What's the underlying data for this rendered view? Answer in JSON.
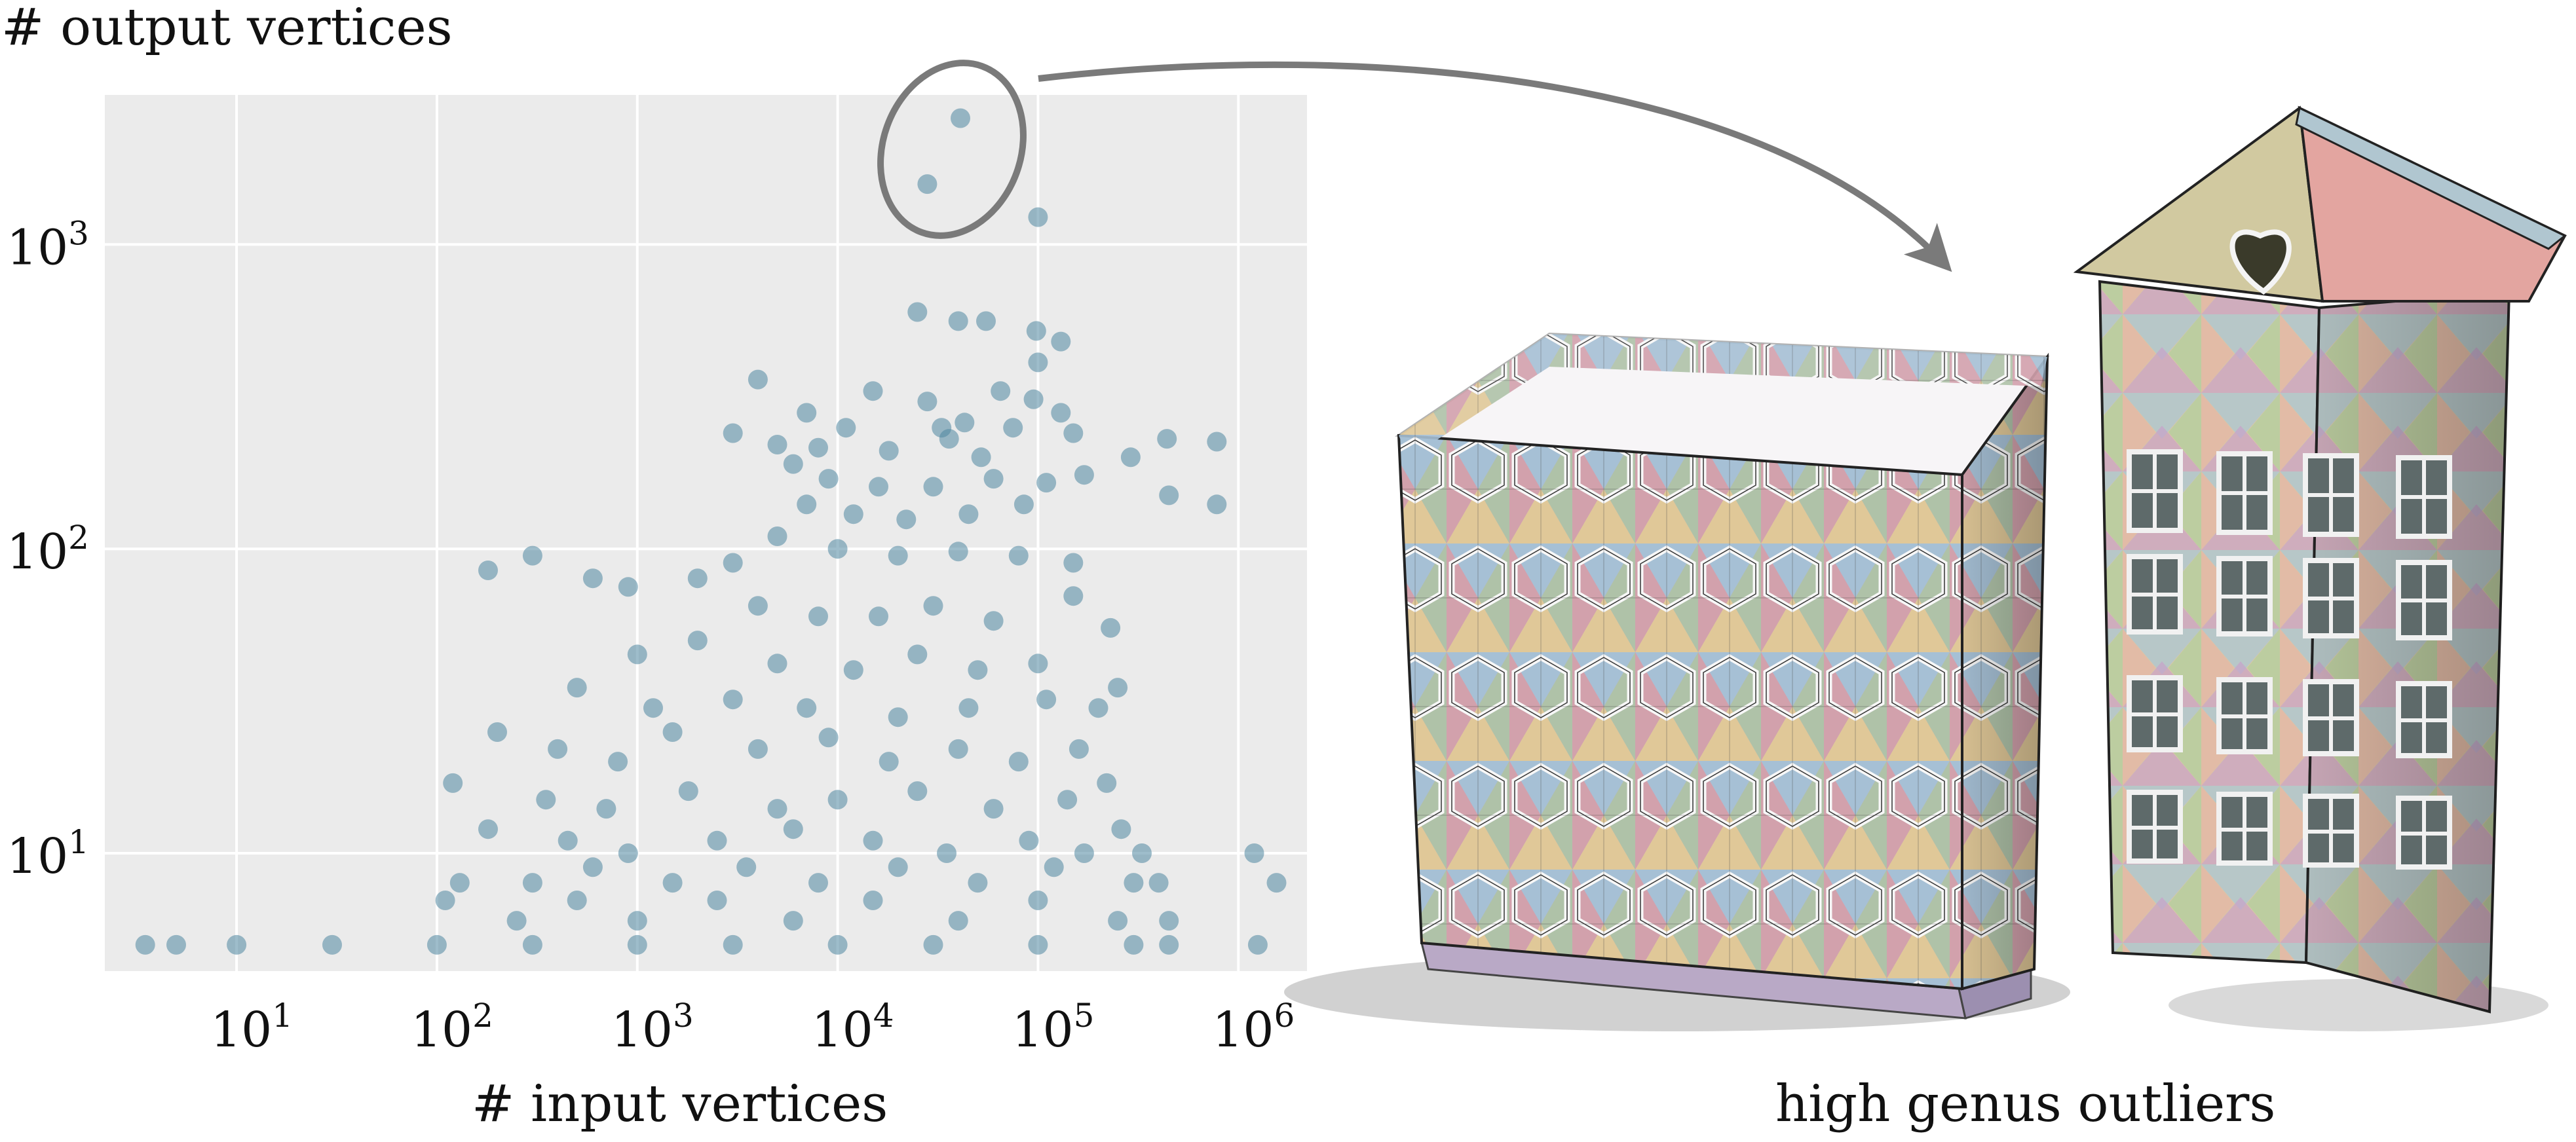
{
  "figure": {
    "caption": "high genus outliers"
  },
  "chart_data": {
    "type": "scatter",
    "title": "",
    "xlabel": "# input vertices",
    "ylabel": "# output vertices",
    "x_scale": "log",
    "y_scale": "log",
    "xlim": [
      2.2,
      2200000
    ],
    "ylim": [
      4.1,
      3100
    ],
    "x_ticks": [
      10,
      100,
      1000,
      10000,
      100000,
      1000000
    ],
    "y_ticks": [
      10,
      100,
      1000
    ],
    "grid": true,
    "colors": {
      "points": "#4f86a1",
      "background": "#ebebeb",
      "grid": "#ffffff",
      "annotation": "#7a7a7a"
    },
    "annotation": {
      "type": "ellipse-and-arrow",
      "target": "high genus outliers"
    },
    "points": [
      [
        41000,
        2600
      ],
      [
        28000,
        1580
      ],
      [
        100000,
        1230
      ],
      [
        25000,
        600
      ],
      [
        40000,
        560
      ],
      [
        55000,
        560
      ],
      [
        98000,
        520
      ],
      [
        100000,
        410
      ],
      [
        130000,
        480
      ],
      [
        15000,
        330
      ],
      [
        28000,
        305
      ],
      [
        65000,
        330
      ],
      [
        95000,
        310
      ],
      [
        130000,
        280
      ],
      [
        150000,
        240
      ],
      [
        4000,
        360
      ],
      [
        7000,
        280
      ],
      [
        11000,
        250
      ],
      [
        33000,
        250
      ],
      [
        43000,
        260
      ],
      [
        75000,
        250
      ],
      [
        3000,
        240
      ],
      [
        5000,
        220
      ],
      [
        8000,
        215
      ],
      [
        18000,
        210
      ],
      [
        36000,
        230
      ],
      [
        52000,
        200
      ],
      [
        290000,
        200
      ],
      [
        440000,
        230
      ],
      [
        780000,
        225
      ],
      [
        450000,
        150
      ],
      [
        780000,
        140
      ],
      [
        1200000,
        10
      ],
      [
        1550000,
        8
      ],
      [
        6000,
        190
      ],
      [
        9000,
        170
      ],
      [
        16000,
        160
      ],
      [
        30000,
        160
      ],
      [
        60000,
        170
      ],
      [
        110000,
        165
      ],
      [
        170000,
        175
      ],
      [
        7000,
        140
      ],
      [
        12000,
        130
      ],
      [
        22000,
        125
      ],
      [
        45000,
        130
      ],
      [
        85000,
        140
      ],
      [
        5000,
        110
      ],
      [
        10000,
        100
      ],
      [
        20000,
        95
      ],
      [
        40000,
        98
      ],
      [
        80000,
        95
      ],
      [
        150000,
        90
      ],
      [
        180,
        85
      ],
      [
        300,
        95
      ],
      [
        600,
        80
      ],
      [
        900,
        75
      ],
      [
        2000,
        80
      ],
      [
        3000,
        90
      ],
      [
        150000,
        70
      ],
      [
        230000,
        55
      ],
      [
        4000,
        65
      ],
      [
        8000,
        60
      ],
      [
        16000,
        60
      ],
      [
        30000,
        65
      ],
      [
        60000,
        58
      ],
      [
        1000,
        45
      ],
      [
        2000,
        50
      ],
      [
        5000,
        42
      ],
      [
        12000,
        40
      ],
      [
        25000,
        45
      ],
      [
        50000,
        40
      ],
      [
        100000,
        42
      ],
      [
        500,
        35
      ],
      [
        1200,
        30
      ],
      [
        3000,
        32
      ],
      [
        7000,
        30
      ],
      [
        20000,
        28
      ],
      [
        45000,
        30
      ],
      [
        110000,
        32
      ],
      [
        200000,
        30
      ],
      [
        250000,
        35
      ],
      [
        200,
        25
      ],
      [
        400,
        22
      ],
      [
        800,
        20
      ],
      [
        1500,
        25
      ],
      [
        4000,
        22
      ],
      [
        9000,
        24
      ],
      [
        18000,
        20
      ],
      [
        40000,
        22
      ],
      [
        80000,
        20
      ],
      [
        160000,
        22
      ],
      [
        120,
        17
      ],
      [
        350,
        15
      ],
      [
        700,
        14
      ],
      [
        1800,
        16
      ],
      [
        5000,
        14
      ],
      [
        10000,
        15
      ],
      [
        25000,
        16
      ],
      [
        60000,
        14
      ],
      [
        140000,
        15
      ],
      [
        220000,
        17
      ],
      [
        180,
        12
      ],
      [
        450,
        11
      ],
      [
        900,
        10
      ],
      [
        2500,
        11
      ],
      [
        6000,
        12
      ],
      [
        15000,
        11
      ],
      [
        35000,
        10
      ],
      [
        90000,
        11
      ],
      [
        170000,
        10
      ],
      [
        260000,
        12
      ],
      [
        330000,
        10
      ],
      [
        130,
        8
      ],
      [
        300,
        8
      ],
      [
        600,
        9
      ],
      [
        1500,
        8
      ],
      [
        3500,
        9
      ],
      [
        8000,
        8
      ],
      [
        20000,
        9
      ],
      [
        50000,
        8
      ],
      [
        120000,
        9
      ],
      [
        300000,
        8
      ],
      [
        400000,
        8
      ],
      [
        110,
        7
      ],
      [
        250,
        6
      ],
      [
        500,
        7
      ],
      [
        1000,
        6
      ],
      [
        2500,
        7
      ],
      [
        6000,
        6
      ],
      [
        15000,
        7
      ],
      [
        40000,
        6
      ],
      [
        100000,
        7
      ],
      [
        250000,
        6
      ],
      [
        450000,
        6
      ],
      [
        3.5,
        5
      ],
      [
        5,
        5
      ],
      [
        10,
        5
      ],
      [
        30,
        5
      ],
      [
        100,
        5
      ],
      [
        300,
        5
      ],
      [
        1000,
        5
      ],
      [
        3000,
        5
      ],
      [
        10000,
        5
      ],
      [
        30000,
        5
      ],
      [
        100000,
        5
      ],
      [
        300000,
        5
      ],
      [
        450000,
        5
      ],
      [
        1250000,
        5
      ]
    ]
  }
}
